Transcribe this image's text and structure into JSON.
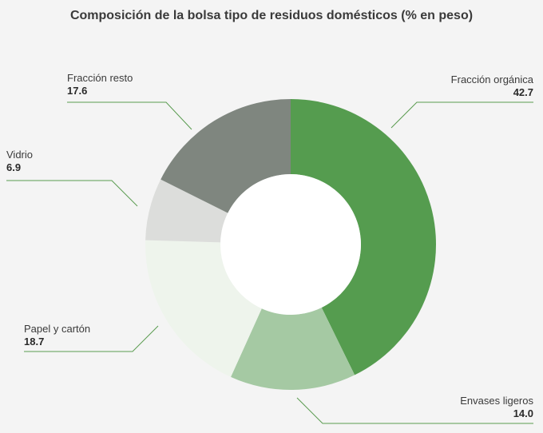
{
  "chart_data": {
    "type": "pie",
    "donut": true,
    "title": "Composición de la bolsa tipo de residuos domésticos (% en peso)",
    "slices": [
      {
        "label": "Fracción orgánica",
        "value": 42.7,
        "value_label": "42.7",
        "color": "#559c4f"
      },
      {
        "label": "Envases ligeros",
        "value": 14.0,
        "value_label": "14.0",
        "color": "#a5c9a3"
      },
      {
        "label": "Papel y cartón",
        "value": 18.7,
        "value_label": "18.7",
        "color": "#eef4ec"
      },
      {
        "label": "Vidrio",
        "value": 6.9,
        "value_label": "6.9",
        "color": "#dcdddb"
      },
      {
        "label": "Fracción resto",
        "value": 17.6,
        "value_label": "17.6",
        "color": "#7f867f"
      }
    ],
    "leader_color": "#5a9b50"
  }
}
